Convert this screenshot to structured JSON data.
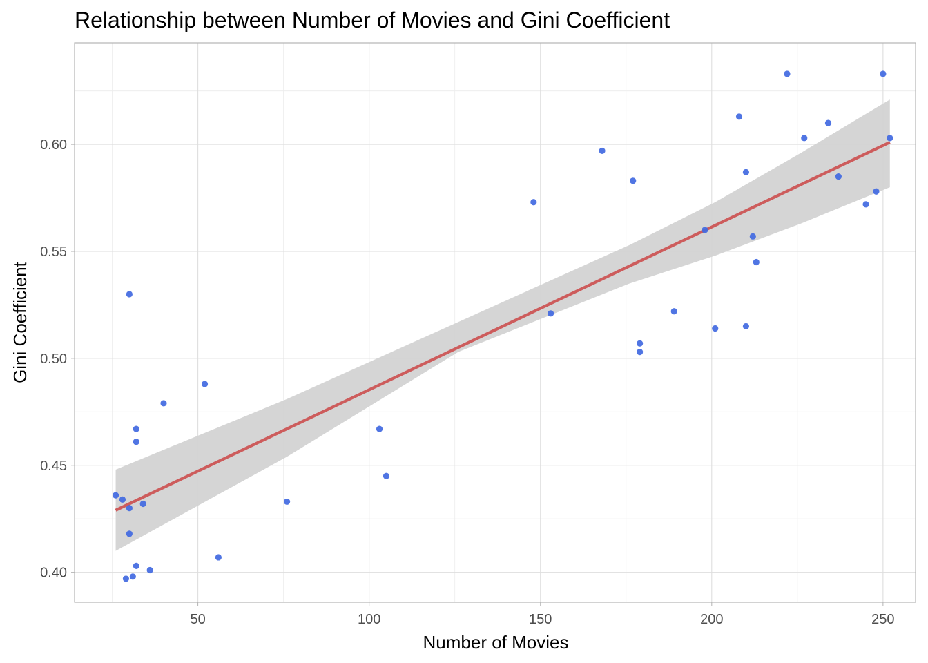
{
  "chart_data": {
    "type": "scatter",
    "title": "Relationship between Number of Movies and Gini Coefficient",
    "xlabel": "Number of Movies",
    "ylabel": "Gini Coefficient",
    "xlim": [
      14,
      259.5
    ],
    "ylim": [
      0.386,
      0.6475
    ],
    "x_ticks": [
      50,
      100,
      150,
      200,
      250
    ],
    "x_tick_labels": [
      "50",
      "100",
      "150",
      "200",
      "250"
    ],
    "x_minor_ticks": [
      25,
      75,
      125,
      175,
      225
    ],
    "y_ticks": [
      0.4,
      0.45,
      0.5,
      0.55,
      0.6
    ],
    "y_tick_labels": [
      "0.40",
      "0.45",
      "0.50",
      "0.55",
      "0.60"
    ],
    "y_minor_ticks": [
      0.425,
      0.475,
      0.525,
      0.575,
      0.625
    ],
    "grid": true,
    "legend": "none",
    "colors": {
      "points": "#4169E1",
      "fit_line": "#CD5C5C",
      "confidence_band": "#D3D3D3"
    },
    "points": [
      {
        "x": 26,
        "y": 0.436
      },
      {
        "x": 28,
        "y": 0.434
      },
      {
        "x": 29,
        "y": 0.397
      },
      {
        "x": 30,
        "y": 0.53
      },
      {
        "x": 30,
        "y": 0.43
      },
      {
        "x": 30,
        "y": 0.418
      },
      {
        "x": 31,
        "y": 0.398
      },
      {
        "x": 32,
        "y": 0.467
      },
      {
        "x": 32,
        "y": 0.461
      },
      {
        "x": 32,
        "y": 0.403
      },
      {
        "x": 34,
        "y": 0.432
      },
      {
        "x": 36,
        "y": 0.401
      },
      {
        "x": 40,
        "y": 0.479
      },
      {
        "x": 52,
        "y": 0.488
      },
      {
        "x": 56,
        "y": 0.407
      },
      {
        "x": 76,
        "y": 0.433
      },
      {
        "x": 103,
        "y": 0.467
      },
      {
        "x": 105,
        "y": 0.445
      },
      {
        "x": 148,
        "y": 0.573
      },
      {
        "x": 153,
        "y": 0.521
      },
      {
        "x": 168,
        "y": 0.597
      },
      {
        "x": 177,
        "y": 0.583
      },
      {
        "x": 179,
        "y": 0.507
      },
      {
        "x": 179,
        "y": 0.503
      },
      {
        "x": 189,
        "y": 0.522
      },
      {
        "x": 198,
        "y": 0.56
      },
      {
        "x": 201,
        "y": 0.514
      },
      {
        "x": 208,
        "y": 0.613
      },
      {
        "x": 210,
        "y": 0.587
      },
      {
        "x": 210,
        "y": 0.515
      },
      {
        "x": 212,
        "y": 0.557
      },
      {
        "x": 213,
        "y": 0.545
      },
      {
        "x": 222,
        "y": 0.633
      },
      {
        "x": 227,
        "y": 0.603
      },
      {
        "x": 234,
        "y": 0.61
      },
      {
        "x": 237,
        "y": 0.585
      },
      {
        "x": 245,
        "y": 0.572
      },
      {
        "x": 248,
        "y": 0.578
      },
      {
        "x": 250,
        "y": 0.633
      },
      {
        "x": 252,
        "y": 0.603
      }
    ],
    "fit_line": {
      "x": [
        26,
        252
      ],
      "y": [
        0.429,
        0.601
      ]
    },
    "confidence_band": [
      {
        "x": 26,
        "lower": 0.41,
        "upper": 0.448
      },
      {
        "x": 76,
        "lower": 0.454,
        "upper": 0.481
      },
      {
        "x": 126,
        "lower": 0.503,
        "upper": 0.517
      },
      {
        "x": 176,
        "lower": 0.535,
        "upper": 0.553
      },
      {
        "x": 201,
        "lower": 0.548,
        "upper": 0.573
      },
      {
        "x": 226,
        "lower": 0.563,
        "upper": 0.596
      },
      {
        "x": 252,
        "lower": 0.58,
        "upper": 0.621
      }
    ]
  }
}
